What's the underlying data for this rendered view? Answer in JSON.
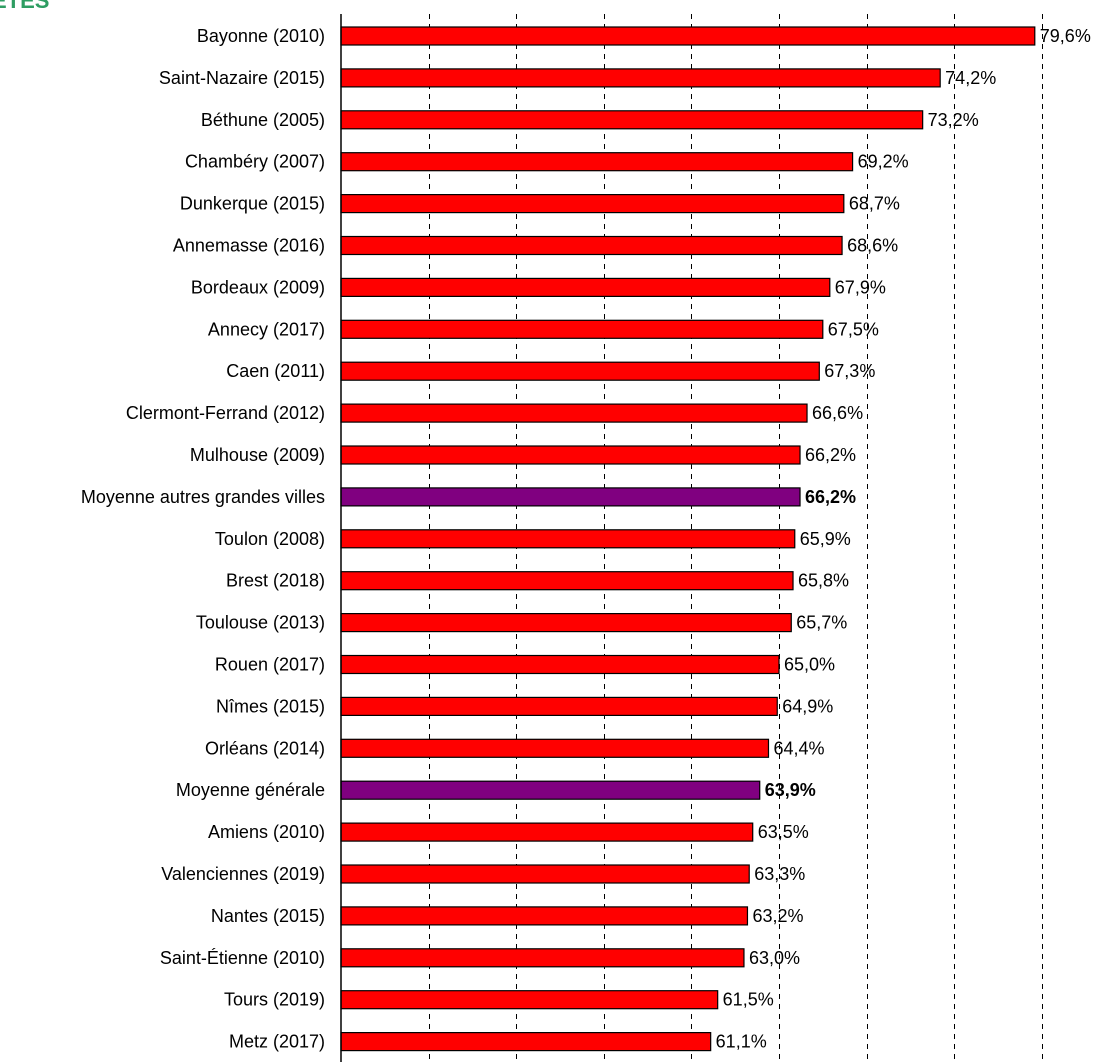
{
  "brand_fragment": "ETES",
  "colors": {
    "bar": "#ff0000",
    "highlight": "#800080",
    "brand": "#2e9d62"
  },
  "chart_data": {
    "type": "bar",
    "orientation": "horizontal",
    "xlim": [
      40,
      80
    ],
    "x_step": 5,
    "grid": true,
    "categories": [
      "Bayonne (2010)",
      "Saint-Nazaire (2015)",
      "Béthune (2005)",
      "Chambéry (2007)",
      "Dunkerque (2015)",
      "Annemasse (2016)",
      "Bordeaux (2009)",
      "Annecy (2017)",
      "Caen (2011)",
      "Clermont-Ferrand (2012)",
      "Mulhouse (2009)",
      "Moyenne autres grandes villes",
      "Toulon (2008)",
      "Brest (2018)",
      "Toulouse (2013)",
      "Rouen (2017)",
      "Nîmes (2015)",
      "Orléans (2014)",
      "Moyenne générale",
      "Amiens (2010)",
      "Valenciennes (2019)",
      "Nantes (2015)",
      "Saint-Étienne (2010)",
      "Tours (2019)",
      "Metz (2017)"
    ],
    "values": [
      79.6,
      74.2,
      73.2,
      69.2,
      68.7,
      68.6,
      67.9,
      67.5,
      67.3,
      66.6,
      66.2,
      66.2,
      65.9,
      65.8,
      65.7,
      65.0,
      64.9,
      64.4,
      63.9,
      63.5,
      63.3,
      63.2,
      63.0,
      61.5,
      61.1
    ],
    "value_labels": [
      "79,6%",
      "74,2%",
      "73,2%",
      "69,2%",
      "68,7%",
      "68,6%",
      "67,9%",
      "67,5%",
      "67,3%",
      "66,6%",
      "66,2%",
      "66,2%",
      "65,9%",
      "65,8%",
      "65,7%",
      "65,0%",
      "64,9%",
      "64,4%",
      "63,9%",
      "63,5%",
      "63,3%",
      "63,2%",
      "63,0%",
      "61,5%",
      "61,1%"
    ],
    "highlighted": [
      "Moyenne autres grandes villes",
      "Moyenne générale"
    ]
  }
}
